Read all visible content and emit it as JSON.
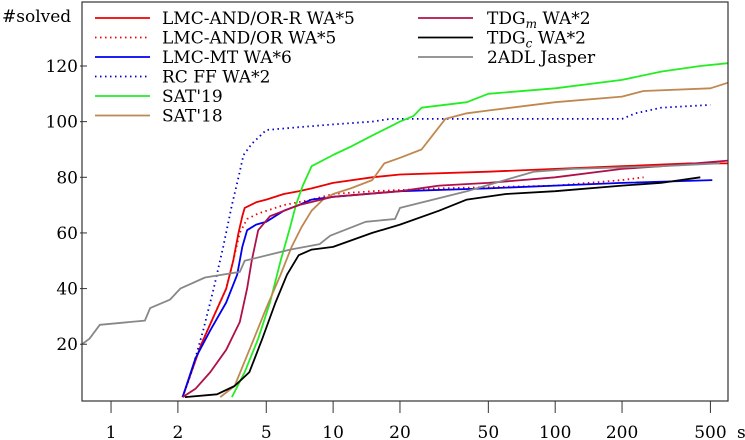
{
  "chart_data": {
    "type": "line",
    "ylabel": "#solved",
    "xunit": "sec",
    "xscale": "log",
    "xlim": [
      0.74,
      600
    ],
    "ylim": [
      -0.4,
      143
    ],
    "grid": false,
    "legend_position": "top",
    "xticks": [
      1,
      2,
      5,
      10,
      20,
      50,
      100,
      200,
      500
    ],
    "xtick_labels": [
      "1",
      "2",
      "5",
      "10",
      "20",
      "50",
      "100",
      "200",
      "500"
    ],
    "yticks": [
      20,
      40,
      60,
      80,
      100,
      120
    ],
    "ytick_labels": [
      "20",
      "40",
      "60",
      "80",
      "100",
      "120"
    ],
    "series": [
      {
        "name": "LMC-AND/OR-R WA*5",
        "name_main": "LMC-AND/OR-R WA*5",
        "color": "#ee0000",
        "style": "solid",
        "points": [
          [
            2.1,
            1
          ],
          [
            2.3,
            10
          ],
          [
            2.55,
            20
          ],
          [
            2.9,
            30
          ],
          [
            3.3,
            40
          ],
          [
            3.55,
            50
          ],
          [
            3.75,
            60
          ],
          [
            3.9,
            66
          ],
          [
            4.0,
            69
          ],
          [
            4.5,
            71
          ],
          [
            5,
            72
          ],
          [
            6,
            74
          ],
          [
            7,
            75
          ],
          [
            8,
            76
          ],
          [
            10,
            78
          ],
          [
            15,
            80
          ],
          [
            20,
            81
          ],
          [
            50,
            82
          ],
          [
            100,
            83
          ],
          [
            200,
            84
          ],
          [
            400,
            85
          ],
          [
            600,
            85
          ]
        ]
      },
      {
        "name": "LMC-AND/OR WA*5",
        "name_main": "LMC-AND/OR WA*5",
        "color": "#ee0000",
        "style": "dotted",
        "points": [
          [
            2.1,
            1
          ],
          [
            2.3,
            10
          ],
          [
            2.55,
            20
          ],
          [
            2.9,
            30
          ],
          [
            3.3,
            40
          ],
          [
            3.55,
            50
          ],
          [
            3.8,
            60
          ],
          [
            4.1,
            65
          ],
          [
            4.6,
            67
          ],
          [
            6,
            70
          ],
          [
            8,
            72
          ],
          [
            10,
            74
          ],
          [
            15,
            75
          ],
          [
            30,
            76
          ],
          [
            100,
            77
          ],
          [
            200,
            79
          ],
          [
            250,
            80
          ]
        ]
      },
      {
        "name": "LMC-MT WA*6",
        "name_main": "LMC-MT WA*6",
        "color": "#0000ee",
        "style": "solid",
        "points": [
          [
            2.1,
            1
          ],
          [
            2.4,
            15
          ],
          [
            2.8,
            25
          ],
          [
            3.3,
            35
          ],
          [
            3.7,
            45
          ],
          [
            3.9,
            55
          ],
          [
            4.1,
            61
          ],
          [
            4.5,
            63
          ],
          [
            5,
            64
          ],
          [
            6,
            68
          ],
          [
            7,
            70
          ],
          [
            8,
            72
          ],
          [
            10,
            73
          ],
          [
            20,
            75
          ],
          [
            50,
            76
          ],
          [
            100,
            77
          ],
          [
            200,
            78
          ],
          [
            510,
            79
          ]
        ]
      },
      {
        "name": "RC FF WA*2",
        "name_main": "RC FF WA*2",
        "color": "#0000cc",
        "style": "dotted",
        "points": [
          [
            2.1,
            1
          ],
          [
            2.3,
            10
          ],
          [
            2.6,
            25
          ],
          [
            2.9,
            40
          ],
          [
            3.2,
            55
          ],
          [
            3.5,
            70
          ],
          [
            3.75,
            80
          ],
          [
            3.95,
            88
          ],
          [
            4.3,
            92
          ],
          [
            5,
            97
          ],
          [
            7,
            98
          ],
          [
            10,
            99
          ],
          [
            15,
            100
          ],
          [
            18,
            101
          ],
          [
            200,
            101
          ],
          [
            230,
            103
          ],
          [
            300,
            105
          ],
          [
            500,
            106
          ]
        ]
      },
      {
        "name": "SAT'19",
        "name_main": "SAT'19",
        "color": "#22ee22",
        "style": "solid",
        "points": [
          [
            3.5,
            1
          ],
          [
            4.0,
            10
          ],
          [
            4.6,
            22
          ],
          [
            5.2,
            35
          ],
          [
            5.8,
            50
          ],
          [
            6.4,
            62
          ],
          [
            6.8,
            70
          ],
          [
            7.3,
            77
          ],
          [
            8,
            84
          ],
          [
            10,
            88
          ],
          [
            12,
            91
          ],
          [
            15,
            95
          ],
          [
            20,
            100
          ],
          [
            23,
            102
          ],
          [
            25,
            105
          ],
          [
            40,
            107
          ],
          [
            50,
            110
          ],
          [
            100,
            112
          ],
          [
            200,
            115
          ],
          [
            300,
            118
          ],
          [
            450,
            120
          ],
          [
            600,
            121
          ]
        ]
      },
      {
        "name": "SAT'18",
        "name_main": "SAT'18",
        "color": "#c08850",
        "style": "solid",
        "points": [
          [
            3.1,
            1
          ],
          [
            3.6,
            5
          ],
          [
            4.3,
            20
          ],
          [
            5,
            33
          ],
          [
            5.8,
            45
          ],
          [
            6.5,
            55
          ],
          [
            7.2,
            62
          ],
          [
            8,
            68
          ],
          [
            9,
            72
          ],
          [
            10,
            74
          ],
          [
            12,
            76
          ],
          [
            15,
            79
          ],
          [
            17,
            85
          ],
          [
            20,
            87
          ],
          [
            25,
            90
          ],
          [
            28,
            95
          ],
          [
            32,
            101
          ],
          [
            40,
            103
          ],
          [
            50,
            104
          ],
          [
            100,
            107
          ],
          [
            200,
            109
          ],
          [
            250,
            111
          ],
          [
            500,
            112
          ],
          [
            600,
            114
          ]
        ]
      },
      {
        "name": "TDGm WA*2",
        "name_main": "TDG",
        "name_sub": "m",
        "name_rest": " WA*2",
        "color": "#b0104a",
        "style": "solid",
        "points": [
          [
            2.1,
            1
          ],
          [
            2.4,
            4
          ],
          [
            2.8,
            10
          ],
          [
            3.3,
            18
          ],
          [
            3.8,
            28
          ],
          [
            4.1,
            40
          ],
          [
            4.3,
            50
          ],
          [
            4.6,
            61
          ],
          [
            5.2,
            66
          ],
          [
            7,
            70
          ],
          [
            10,
            73
          ],
          [
            20,
            75
          ],
          [
            30,
            77
          ],
          [
            50,
            78
          ],
          [
            100,
            80
          ],
          [
            200,
            83
          ],
          [
            300,
            84
          ],
          [
            600,
            86
          ]
        ]
      },
      {
        "name": "TDGc WA*2",
        "name_main": "TDG",
        "name_sub": "c",
        "name_rest": " WA*2",
        "color": "#000000",
        "style": "solid",
        "points": [
          [
            2.15,
            1
          ],
          [
            3.0,
            2
          ],
          [
            3.6,
            5
          ],
          [
            4.2,
            10
          ],
          [
            4.8,
            22
          ],
          [
            5.5,
            35
          ],
          [
            6.2,
            45
          ],
          [
            7,
            52
          ],
          [
            8,
            54
          ],
          [
            10,
            55
          ],
          [
            15,
            60
          ],
          [
            20,
            63
          ],
          [
            30,
            68
          ],
          [
            40,
            72
          ],
          [
            60,
            74
          ],
          [
            100,
            75
          ],
          [
            200,
            77
          ],
          [
            300,
            78
          ],
          [
            450,
            80
          ]
        ]
      },
      {
        "name": "2ADL Jasper",
        "name_main": "2ADL Jasper",
        "color": "#888888",
        "style": "solid",
        "points": [
          [
            0.74,
            20
          ],
          [
            0.8,
            22
          ],
          [
            0.89,
            27
          ],
          [
            1.42,
            28.5
          ],
          [
            1.5,
            33
          ],
          [
            1.84,
            36
          ],
          [
            2.05,
            40
          ],
          [
            2.65,
            44
          ],
          [
            3.8,
            46
          ],
          [
            4.0,
            50
          ],
          [
            6.4,
            54
          ],
          [
            8.7,
            56
          ],
          [
            9.7,
            59
          ],
          [
            14,
            64
          ],
          [
            19,
            65
          ],
          [
            20,
            69
          ],
          [
            40,
            75
          ],
          [
            80,
            82
          ],
          [
            120,
            83
          ],
          [
            300,
            84
          ],
          [
            550,
            85
          ]
        ]
      }
    ]
  }
}
